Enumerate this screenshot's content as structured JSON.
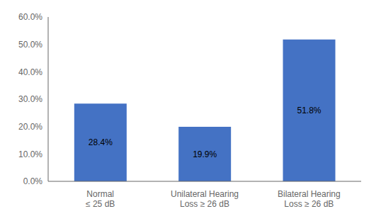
{
  "chart_data": {
    "type": "bar",
    "categories": [
      "Normal\n≤ 25 dB",
      "Unilateral Hearing\nLoss ≥ 26 dB",
      "Bilateral Hearing\nLoss ≥ 26 dB"
    ],
    "values": [
      28.4,
      19.9,
      51.8
    ],
    "value_labels": [
      "28.4%",
      "19.9%",
      "51.8%"
    ],
    "data_labels": true,
    "color": "#4472C4",
    "ylim": [
      0,
      60
    ],
    "yticks": [
      {
        "value": 0,
        "label": "0.0%"
      },
      {
        "value": 10,
        "label": "10.0%"
      },
      {
        "value": 20,
        "label": "20.0%"
      },
      {
        "value": 30,
        "label": "30.0%"
      },
      {
        "value": 40,
        "label": "40.0%"
      },
      {
        "value": 50,
        "label": "50.0%"
      },
      {
        "value": 60,
        "label": "60.0%"
      }
    ],
    "grid": false
  }
}
